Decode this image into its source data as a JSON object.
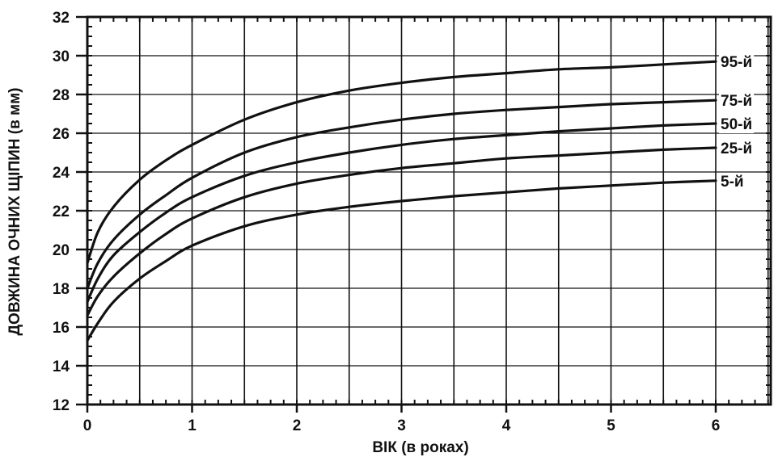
{
  "chart_data": {
    "type": "line",
    "title": "",
    "xlabel": "ВІК (в роках)",
    "ylabel": "ДОВЖИНА ОЧНИХ ЩІПИН (в мм)",
    "xlim": [
      0,
      6.5
    ],
    "ylim": [
      12,
      32
    ],
    "xticks": [
      0,
      1,
      2,
      3,
      4,
      5,
      6
    ],
    "yticks": [
      12,
      14,
      16,
      18,
      20,
      22,
      24,
      26,
      28,
      30,
      32
    ],
    "x_grid": [
      0,
      0.5,
      1,
      1.5,
      2,
      2.5,
      3,
      3.5,
      4,
      4.5,
      5,
      5.5,
      6,
      6.5
    ],
    "y_grid": [
      14,
      16,
      18,
      20,
      22,
      24,
      26,
      28,
      30
    ],
    "grid": true,
    "line_color": "#111111",
    "series": [
      {
        "name": "95-й",
        "x": [
          0,
          0.1,
          0.25,
          0.5,
          0.75,
          1,
          1.5,
          2,
          2.5,
          3,
          3.5,
          4,
          4.5,
          5,
          5.5,
          6
        ],
        "y": [
          19.3,
          20.9,
          22.2,
          23.6,
          24.6,
          25.4,
          26.7,
          27.6,
          28.2,
          28.6,
          28.9,
          29.1,
          29.3,
          29.4,
          29.55,
          29.7
        ]
      },
      {
        "name": "75-й",
        "x": [
          0,
          0.1,
          0.25,
          0.5,
          0.75,
          1,
          1.5,
          2,
          2.5,
          3,
          3.5,
          4,
          4.5,
          5,
          5.5,
          6
        ],
        "y": [
          18.0,
          19.3,
          20.5,
          21.8,
          22.8,
          23.7,
          25.0,
          25.8,
          26.3,
          26.7,
          27.0,
          27.2,
          27.35,
          27.5,
          27.6,
          27.7
        ]
      },
      {
        "name": "50-й",
        "x": [
          0,
          0.1,
          0.25,
          0.5,
          0.75,
          1,
          1.5,
          2,
          2.5,
          3,
          3.5,
          4,
          4.5,
          5,
          5.5,
          6
        ],
        "y": [
          17.3,
          18.5,
          19.7,
          20.9,
          21.9,
          22.7,
          23.8,
          24.5,
          25.0,
          25.4,
          25.7,
          25.9,
          26.1,
          26.25,
          26.4,
          26.5
        ]
      },
      {
        "name": "25-й",
        "x": [
          0,
          0.1,
          0.25,
          0.5,
          0.75,
          1,
          1.5,
          2,
          2.5,
          3,
          3.5,
          4,
          4.5,
          5,
          5.5,
          6
        ],
        "y": [
          16.6,
          17.6,
          18.6,
          19.8,
          20.8,
          21.6,
          22.7,
          23.4,
          23.85,
          24.2,
          24.45,
          24.7,
          24.85,
          25.0,
          25.15,
          25.25
        ]
      },
      {
        "name": "5-й",
        "x": [
          0,
          0.1,
          0.25,
          0.5,
          0.75,
          1,
          1.5,
          2,
          2.5,
          3,
          3.5,
          4,
          4.5,
          5,
          5.5,
          6
        ],
        "y": [
          15.3,
          16.2,
          17.3,
          18.5,
          19.4,
          20.2,
          21.2,
          21.8,
          22.2,
          22.5,
          22.75,
          22.95,
          23.15,
          23.3,
          23.45,
          23.55
        ]
      }
    ]
  }
}
